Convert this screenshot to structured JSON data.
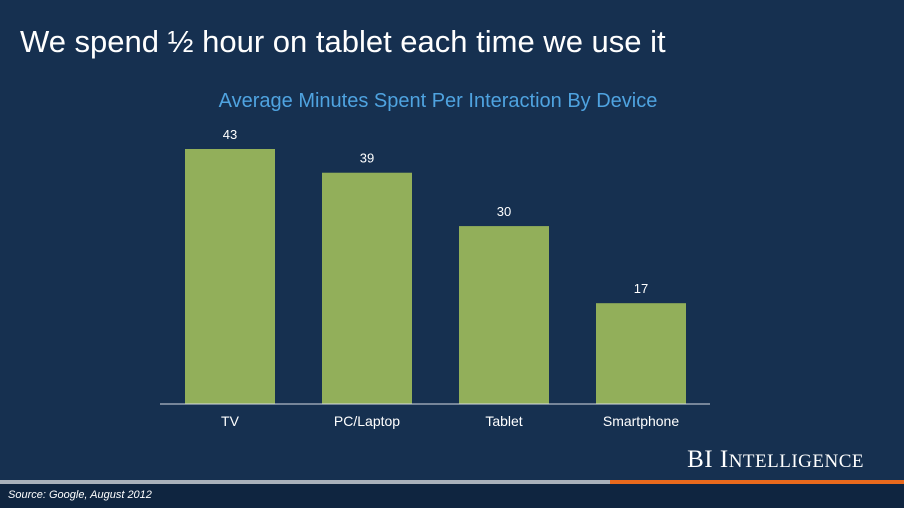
{
  "headline": "We spend ½ hour on tablet each time we use it",
  "brand": {
    "main": "BI I",
    "smallcaps": "NTELLIGENCE"
  },
  "source": "Source: Google, August 2012",
  "colors": {
    "background": "#163050",
    "bar": "#92af5a",
    "title": "#4fa3e0",
    "accent_orange": "#e8691d"
  },
  "chart_data": {
    "type": "bar",
    "title": "Average Minutes Spent Per Interaction By Device",
    "categories": [
      "TV",
      "PC/Laptop",
      "Tablet",
      "Smartphone"
    ],
    "values": [
      43,
      39,
      30,
      17
    ],
    "data_labels": [
      "43",
      "39",
      "30",
      "17"
    ],
    "xlabel": "",
    "ylabel": "",
    "ylim": [
      0,
      43
    ],
    "grid": false,
    "legend": "none"
  }
}
